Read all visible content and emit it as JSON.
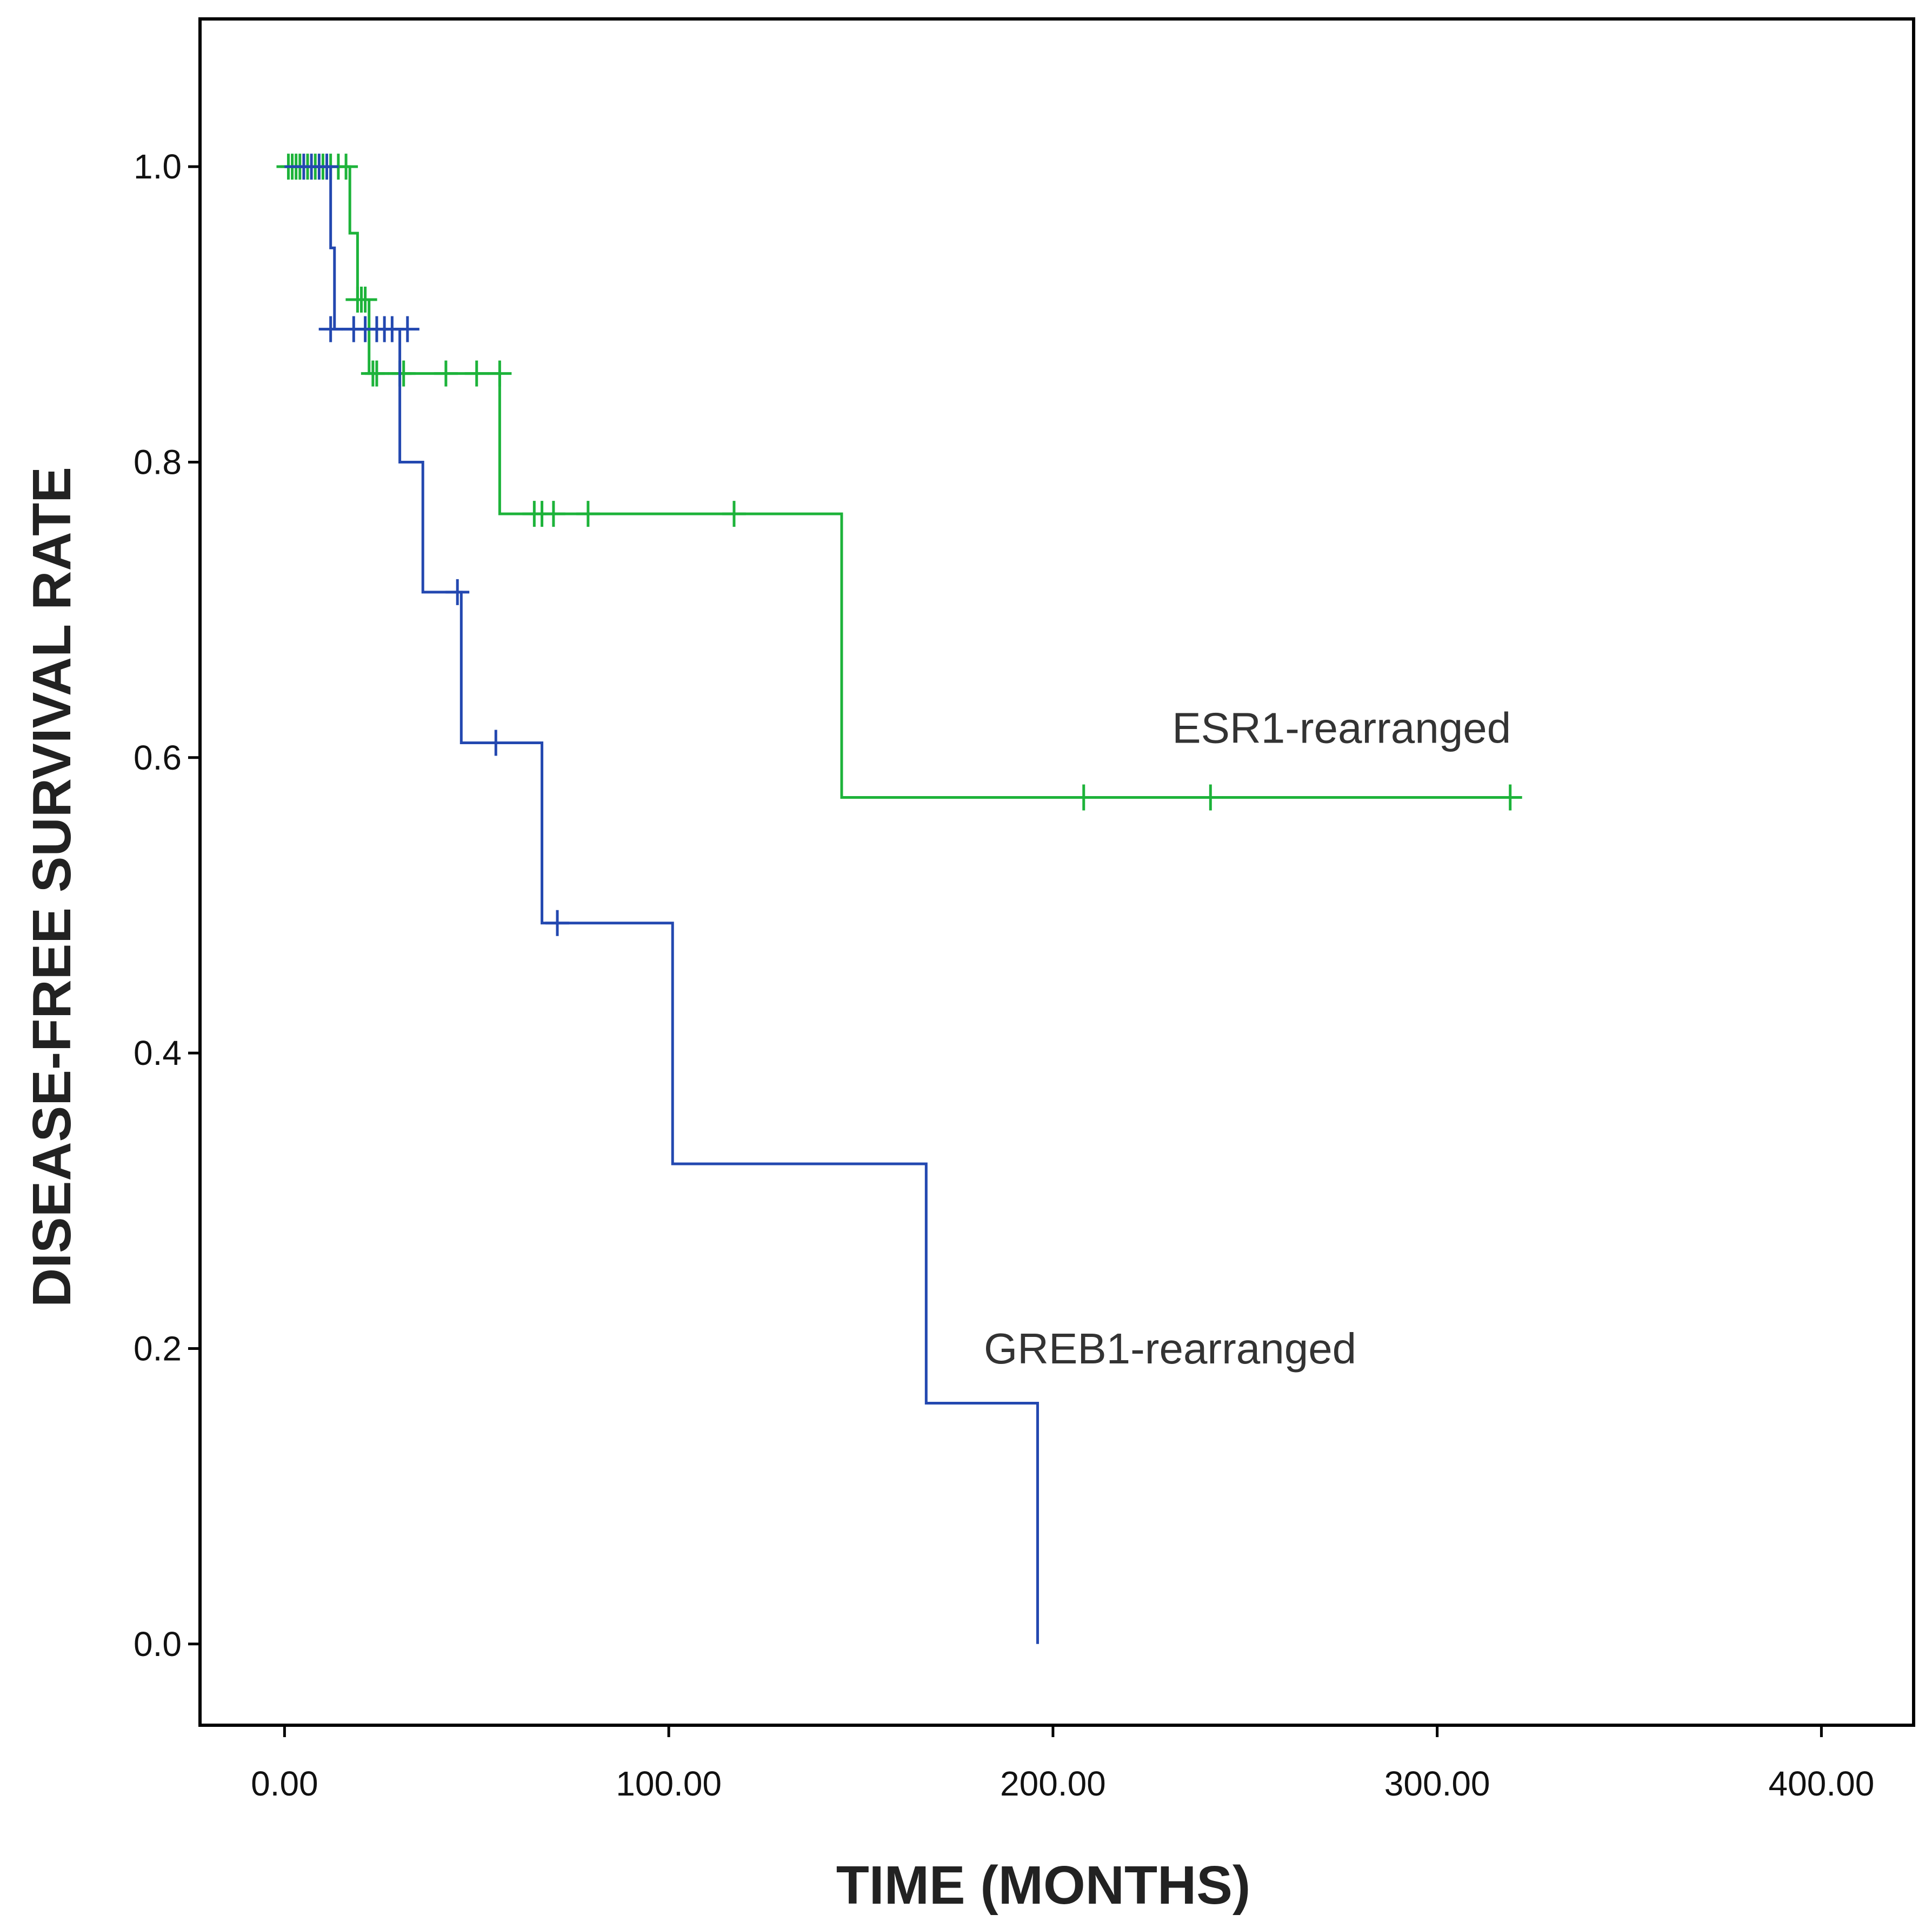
{
  "chart_data": {
    "type": "line",
    "subtype": "kaplan-meier-step",
    "title": "",
    "xlabel": "TIME (MONTHS)",
    "ylabel": "DISEASE-FREE SURVIVAL RATE",
    "xlim": [
      -22,
      424
    ],
    "ylim": [
      -0.055,
      1.1
    ],
    "xticks": [
      0,
      100,
      200,
      300,
      400
    ],
    "xtick_labels": [
      "0.00",
      "100.00",
      "200.00",
      "300.00",
      "400.00"
    ],
    "yticks": [
      0.0,
      0.2,
      0.4,
      0.6,
      0.8,
      1.0
    ],
    "ytick_labels": [
      "0.0",
      "0.2",
      "0.4",
      "0.6",
      "0.8",
      "1.0"
    ],
    "grid": false,
    "legend": "none",
    "series": [
      {
        "name": "ESR1-rearranged",
        "label": "ESR1-rearranged",
        "label_at": [
          231,
          0.61
        ],
        "color": "#1db33a",
        "steps": [
          [
            0,
            1.0
          ],
          [
            17,
            0.955
          ],
          [
            19,
            0.91
          ],
          [
            22,
            0.86
          ],
          [
            56,
            0.765
          ],
          [
            145,
            0.573
          ],
          [
            320,
            0.573
          ]
        ],
        "censored": [
          [
            1,
            1.0
          ],
          [
            2,
            1.0
          ],
          [
            3,
            1.0
          ],
          [
            4,
            1.0
          ],
          [
            6,
            1.0
          ],
          [
            8,
            1.0
          ],
          [
            10,
            1.0
          ],
          [
            12,
            1.0
          ],
          [
            14,
            1.0
          ],
          [
            16,
            1.0
          ],
          [
            19,
            0.91
          ],
          [
            20,
            0.91
          ],
          [
            21,
            0.91
          ],
          [
            23,
            0.86
          ],
          [
            24,
            0.86
          ],
          [
            30,
            0.86
          ],
          [
            31,
            0.86
          ],
          [
            42,
            0.86
          ],
          [
            50,
            0.86
          ],
          [
            56,
            0.86
          ],
          [
            65,
            0.765
          ],
          [
            67,
            0.765
          ],
          [
            70,
            0.765
          ],
          [
            79,
            0.765
          ],
          [
            117,
            0.765
          ],
          [
            208,
            0.573
          ],
          [
            241,
            0.573
          ],
          [
            319,
            0.573
          ]
        ]
      },
      {
        "name": "GREB1-rearranged",
        "label": "GREB1-rearranged",
        "label_at": [
          182,
          0.19
        ],
        "color": "#2348b0",
        "steps": [
          [
            0,
            1.0
          ],
          [
            12,
            0.945
          ],
          [
            13,
            0.89
          ],
          [
            30,
            0.8
          ],
          [
            36,
            0.712
          ],
          [
            46,
            0.61
          ],
          [
            67,
            0.488
          ],
          [
            101,
            0.325
          ],
          [
            167,
            0.163
          ],
          [
            196,
            0.0
          ]
        ],
        "censored": [
          [
            5,
            1.0
          ],
          [
            7,
            1.0
          ],
          [
            9,
            1.0
          ],
          [
            11,
            1.0
          ],
          [
            12,
            0.89
          ],
          [
            18,
            0.89
          ],
          [
            21,
            0.89
          ],
          [
            24,
            0.89
          ],
          [
            26,
            0.89
          ],
          [
            28,
            0.89
          ],
          [
            32,
            0.89
          ],
          [
            45,
            0.712
          ],
          [
            55,
            0.61
          ],
          [
            71,
            0.488
          ]
        ]
      }
    ]
  }
}
